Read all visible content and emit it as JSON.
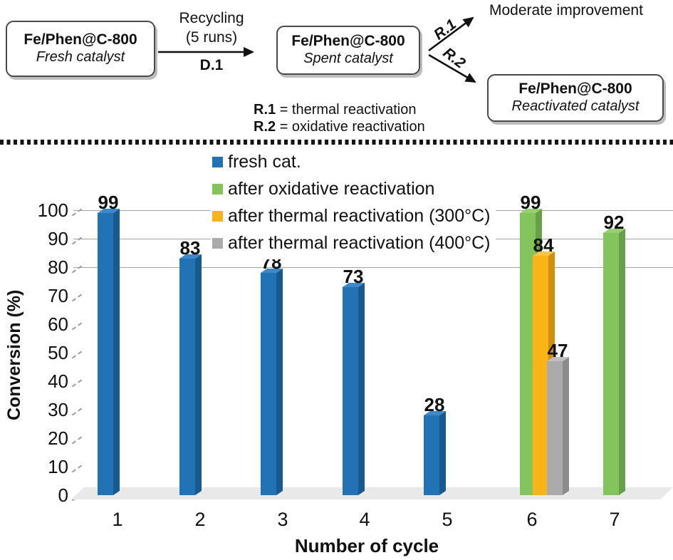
{
  "scheme": {
    "box_fresh": {
      "title": "Fe/Phen@C-800",
      "subtitle": "Fresh catalyst"
    },
    "recycle_arrow": {
      "line1": "Recycling",
      "line2": "(5 runs)",
      "below": "D.1"
    },
    "box_spent": {
      "title": "Fe/Phen@C-800",
      "subtitle": "Spent catalyst"
    },
    "r1_label": "R.1",
    "r2_label": "R.2",
    "moderate_text": "Moderate improvement",
    "box_reactivated": {
      "title": "Fe/Phen@C-800",
      "subtitle": "Reactivated catalyst"
    },
    "definitions": [
      {
        "key": "R.1",
        "text": "= thermal reactivation"
      },
      {
        "key": "R.2",
        "text": "= oxidative reactivation"
      }
    ]
  },
  "chart_data": {
    "type": "bar",
    "title": "",
    "xlabel": "Number of cycle",
    "ylabel": "Conversion (%)",
    "ylim": [
      0,
      100
    ],
    "yticks": [
      0,
      10,
      20,
      30,
      40,
      50,
      60,
      70,
      80,
      90,
      100
    ],
    "gridlines_at": [
      80,
      90,
      100
    ],
    "legend_position": "top-center-inside",
    "style": "3d-columns",
    "categories": [
      "1",
      "2",
      "3",
      "4",
      "5",
      "6",
      "7"
    ],
    "series": [
      {
        "name": "fresh cat.",
        "color": "#2173b6",
        "color_side": "#195a8e",
        "color_top": "#3c88c8",
        "values": [
          99,
          83,
          78,
          73,
          28,
          null,
          null
        ]
      },
      {
        "name": "after oxidative reactivation",
        "color": "#84c45c",
        "color_side": "#699f48",
        "color_top": "#97cf73",
        "values": [
          null,
          null,
          null,
          null,
          null,
          99,
          92
        ]
      },
      {
        "name": "after thermal reactivation (300°C)",
        "color": "#fbb418",
        "color_side": "#ce8f10",
        "color_top": "#fcc54a",
        "values": [
          null,
          null,
          null,
          null,
          null,
          84,
          null
        ]
      },
      {
        "name": "after thermal reactivation (400°C)",
        "color": "#ababab",
        "color_side": "#8c8c8c",
        "color_top": "#c0c0c0",
        "values": [
          null,
          null,
          null,
          null,
          null,
          47,
          null
        ]
      }
    ]
  }
}
